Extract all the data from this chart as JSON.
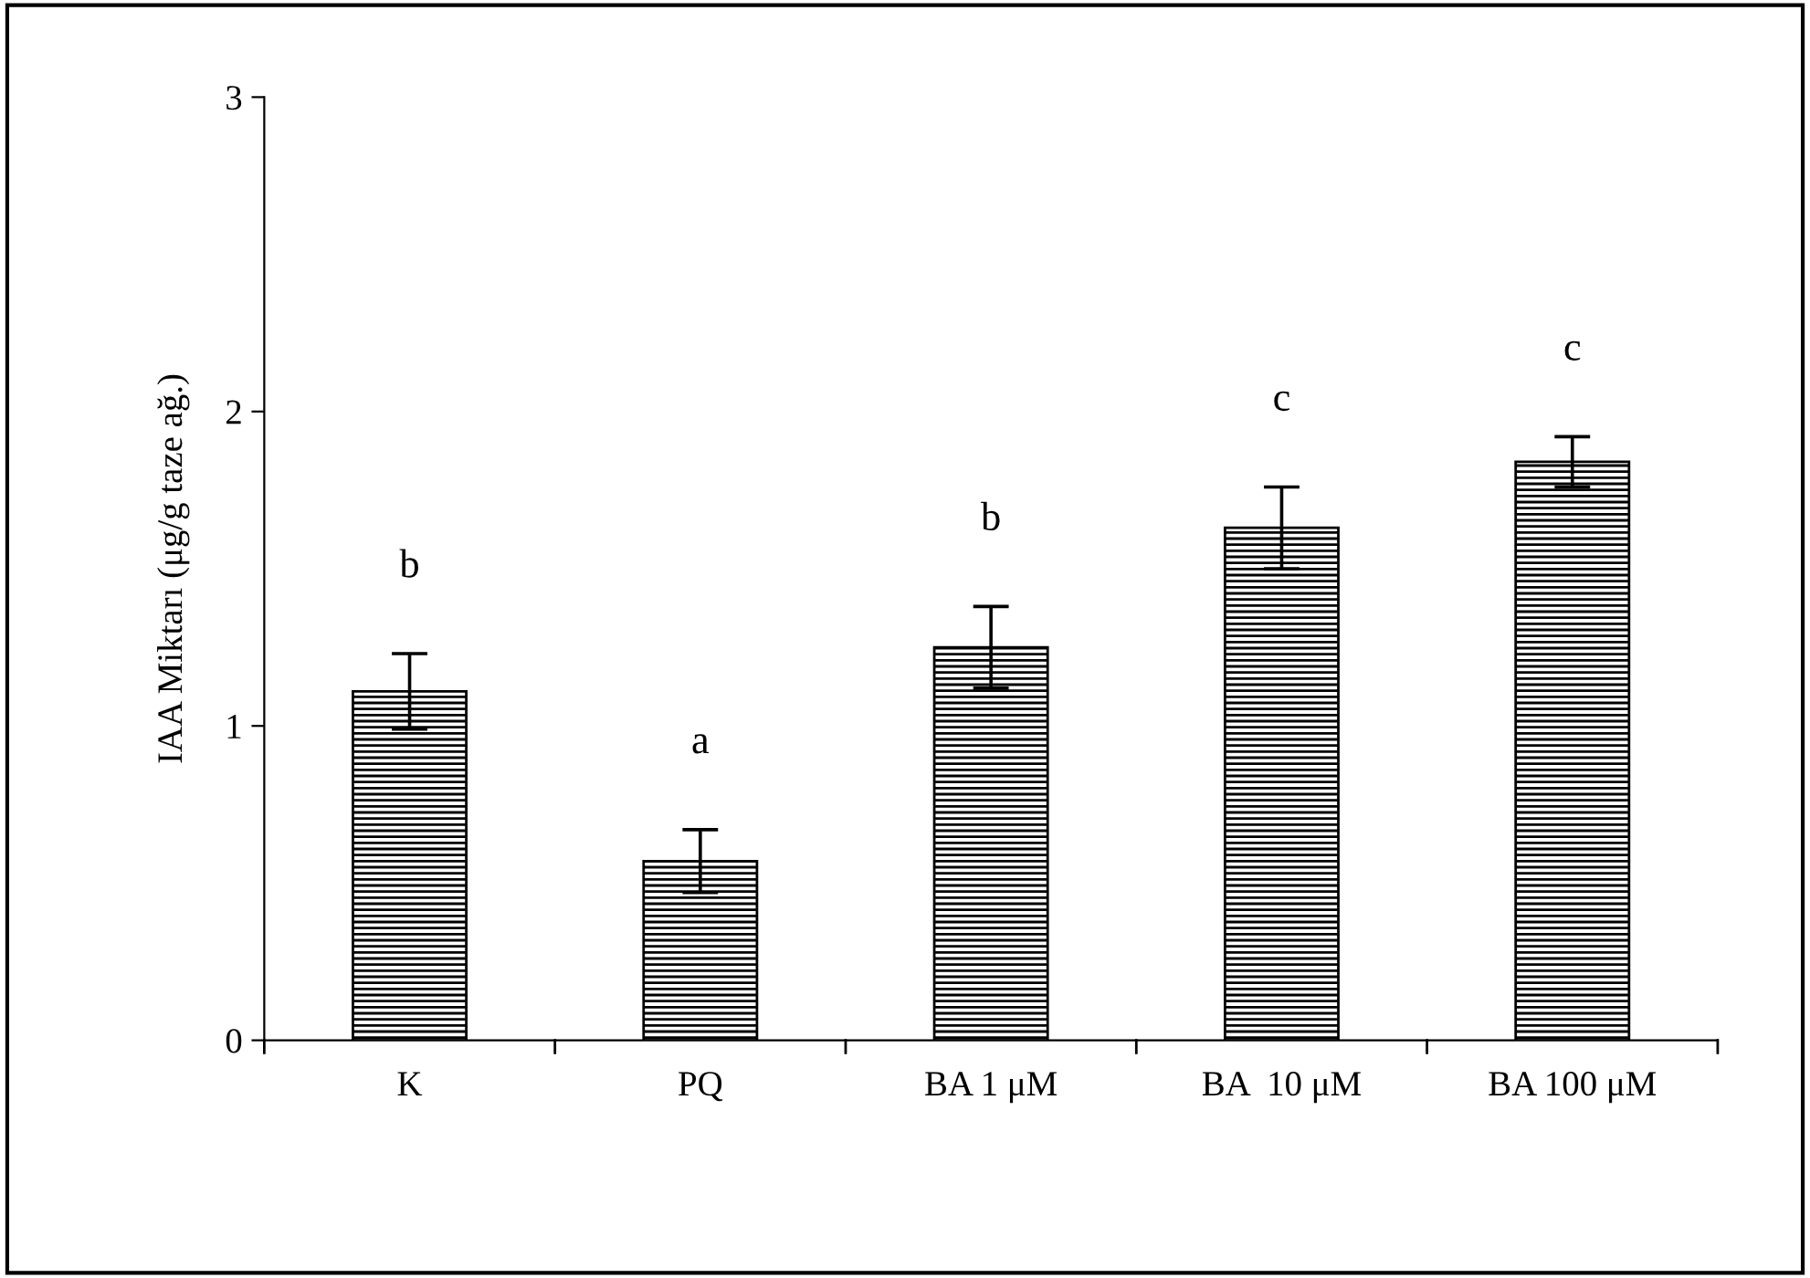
{
  "chart_data": {
    "type": "bar",
    "ylabel": "IAA Miktarı (μg/g taze ağ.)",
    "categories": [
      "K",
      "PQ",
      "BA 1 μM",
      "BA  10 μM",
      "BA 100 μM"
    ],
    "values": [
      1.11,
      0.57,
      1.25,
      1.63,
      1.84
    ],
    "errors": [
      0.12,
      0.1,
      0.13,
      0.13,
      0.08
    ],
    "color": "#000000",
    "ylim": [
      0,
      3
    ],
    "yticks": [
      0,
      1,
      2,
      3
    ],
    "grid": false,
    "legend": false,
    "annotations": [
      "b",
      "a",
      "b",
      "c",
      "c"
    ]
  }
}
